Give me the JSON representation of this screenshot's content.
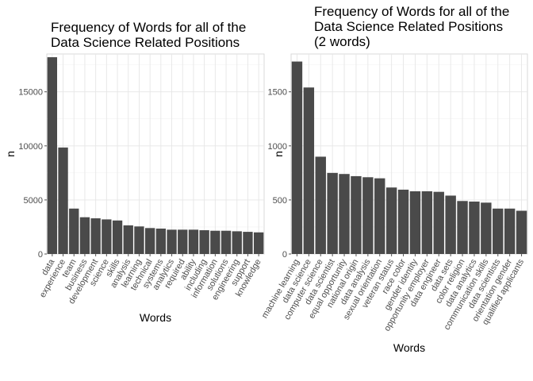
{
  "colors": {
    "bar": "#4a4a4a",
    "grid": "#e6e6e6",
    "panel_border": "#d9d9d9",
    "background": "#ffffff"
  },
  "chart_data": [
    {
      "type": "bar",
      "title_lines": [
        "Frequency of Words for all of the",
        "Data Science Related Positions"
      ],
      "xlabel": "Words",
      "ylabel": "n",
      "ylim": [
        0,
        18500
      ],
      "yticks": [
        0,
        5000,
        10000,
        15000
      ],
      "grid": true,
      "categories": [
        "data",
        "experience",
        "team",
        "business",
        "development",
        "science",
        "skills",
        "analysis",
        "learning",
        "technical",
        "systems",
        "analytics",
        "required",
        "ability",
        "including",
        "information",
        "solutions",
        "engineering",
        "support",
        "knowledge"
      ],
      "values": [
        18200,
        9850,
        4200,
        3400,
        3300,
        3200,
        3100,
        2650,
        2550,
        2400,
        2350,
        2250,
        2250,
        2250,
        2200,
        2150,
        2150,
        2100,
        2050,
        2000
      ]
    },
    {
      "type": "bar",
      "title_lines": [
        "Frequency of Words for all of the",
        "Data Science Related Positions",
        "(2 words)"
      ],
      "xlabel": "Words",
      "ylabel": "n",
      "ylim": [
        0,
        1850
      ],
      "yticks": [
        0,
        500,
        1000,
        1500
      ],
      "grid": true,
      "categories": [
        "machine learning",
        "data science",
        "computer science",
        "data scientist",
        "equal opportunity",
        "national origin",
        "data analysis",
        "sexual orientation",
        "veteran status",
        "race color",
        "gender identity",
        "opportunity employer",
        "data engineer",
        "data sets",
        "color religion",
        "data analytics",
        "communication skills",
        "data scientists",
        "orientation gender",
        "qualified applicants"
      ],
      "values": [
        1780,
        1540,
        900,
        750,
        740,
        720,
        710,
        700,
        615,
        595,
        580,
        580,
        575,
        540,
        490,
        485,
        475,
        420,
        420,
        400
      ]
    }
  ]
}
